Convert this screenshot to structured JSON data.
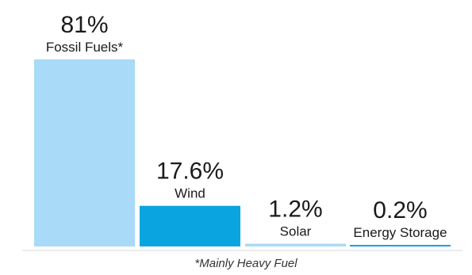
{
  "chart_data": {
    "type": "bar",
    "title": "",
    "xlabel": "",
    "ylabel": "",
    "ylim": [
      0,
      81
    ],
    "categories": [
      "Fossil Fuels*",
      "Wind",
      "Solar",
      "Energy Storage"
    ],
    "values": [
      81,
      17.6,
      1.2,
      0.2
    ],
    "value_labels": [
      "81%",
      "17.6%",
      "1.2%",
      "0.2%"
    ],
    "colors": [
      "#a9daf7",
      "#0aa5e0",
      "#a9daf7",
      "#0aa5e0"
    ],
    "grid": false,
    "legend": "none",
    "footnote": "*Mainly Heavy Fuel"
  }
}
